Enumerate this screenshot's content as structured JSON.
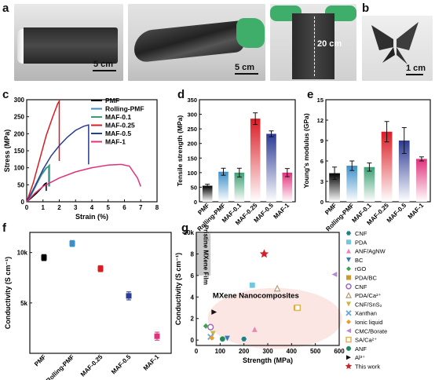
{
  "panel_labels": [
    "a",
    "b",
    "c",
    "d",
    "e",
    "f",
    "g"
  ],
  "photos": {
    "scale_1": "5 cm",
    "scale_2": "5 cm",
    "dimension": "20 cm",
    "scale_b": "1 cm"
  },
  "colors": {
    "PMF": "#000000",
    "Rolling-PMF": "#3c8fc9",
    "MAF-0.1": "#3a9e72",
    "MAF-0.25": "#d91c24",
    "MAF-0.5": "#2c3b94",
    "MAF-1": "#e0317c"
  },
  "chart_data": [
    {
      "panel": "c",
      "type": "line",
      "xlabel": "Strain (%)",
      "ylabel": "Stress (MPa)",
      "xlim": [
        0,
        8
      ],
      "ylim": [
        0,
        300
      ],
      "xticks": [
        0,
        1,
        2,
        3,
        4,
        5,
        6,
        7,
        8
      ],
      "yticks": [
        0,
        50,
        100,
        150,
        200,
        250,
        300
      ],
      "legend_position": "top-right",
      "series": [
        {
          "name": "PMF",
          "x": [
            0,
            0.3,
            0.6,
            0.9,
            1.1,
            1.2,
            1.2
          ],
          "y": [
            0,
            12,
            25,
            40,
            52,
            55,
            32
          ]
        },
        {
          "name": "Rolling-PMF",
          "x": [
            0,
            0.3,
            0.6,
            0.9,
            1.2,
            1.35,
            1.35
          ],
          "y": [
            0,
            25,
            55,
            82,
            100,
            103,
            45
          ]
        },
        {
          "name": "MAF-0.1",
          "x": [
            0,
            0.3,
            0.6,
            0.9,
            1.2,
            1.4,
            1.4
          ],
          "y": [
            0,
            22,
            50,
            78,
            98,
            108,
            45
          ]
        },
        {
          "name": "MAF-0.25",
          "x": [
            0,
            0.4,
            0.8,
            1.2,
            1.6,
            1.9,
            2.0,
            2.0
          ],
          "y": [
            0,
            55,
            125,
            195,
            250,
            288,
            296,
            120
          ]
        },
        {
          "name": "MAF-0.5",
          "x": [
            0,
            0.5,
            1.0,
            1.5,
            2.0,
            2.5,
            3.0,
            3.5,
            3.8,
            3.8
          ],
          "y": [
            0,
            45,
            95,
            135,
            165,
            190,
            210,
            222,
            226,
            110
          ]
        },
        {
          "name": "MAF-1",
          "x": [
            0,
            0.5,
            1.0,
            2.0,
            3.0,
            4.0,
            5.0,
            5.8,
            6.3,
            6.8,
            7.0
          ],
          "y": [
            0,
            25,
            45,
            70,
            88,
            100,
            108,
            110,
            105,
            70,
            45
          ]
        }
      ]
    },
    {
      "panel": "d",
      "type": "bar",
      "ylabel": "Tensile strength (MPa)",
      "ylim": [
        0,
        350
      ],
      "yticks": [
        0,
        50,
        100,
        150,
        200,
        250,
        300,
        350
      ],
      "categories": [
        "PMF",
        "Rolling-PMF",
        "MAF-0.1",
        "MAF-0.25",
        "MAF-0.5",
        "MAF-1"
      ],
      "values": [
        55,
        103,
        100,
        285,
        233,
        100
      ],
      "errors": [
        5,
        12,
        15,
        20,
        10,
        14
      ]
    },
    {
      "panel": "e",
      "type": "bar",
      "ylabel": "Young's modulus (GPa)",
      "ylim": [
        0,
        15
      ],
      "yticks": [
        0,
        3,
        6,
        9,
        12,
        15
      ],
      "categories": [
        "PMF",
        "Rolling-PMF",
        "MAF-0.1",
        "MAF-0.25",
        "MAF-0.5",
        "MAF-1"
      ],
      "values": [
        4.2,
        5.3,
        5.1,
        10.3,
        9.0,
        6.3
      ],
      "errors": [
        0.9,
        0.7,
        0.6,
        1.5,
        1.9,
        0.3
      ]
    },
    {
      "panel": "f",
      "type": "scatter",
      "ylabel": "Conductivity (S cm⁻¹)",
      "ylim": [
        0,
        12000
      ],
      "ytick_labels": [
        "10k",
        "5k"
      ],
      "yticks": [
        10000,
        5000
      ],
      "categories": [
        "PMF",
        "Rolling-PMF",
        "MAF-0.25",
        "MAF-0.5",
        "MAF-1"
      ],
      "values": [
        9500,
        10900,
        8400,
        5700,
        1700
      ],
      "errors": [
        300,
        300,
        300,
        400,
        400
      ]
    },
    {
      "panel": "g",
      "type": "scatter",
      "xlabel": "Strength (MPa)",
      "ylabel": "Conductivity (S cm⁻¹)",
      "xlim": [
        0,
        600
      ],
      "ylim": [
        -0.5,
        10
      ],
      "xticks": [
        0,
        100,
        200,
        300,
        400,
        500,
        600
      ],
      "yticks": [
        0,
        2,
        4,
        6,
        8,
        10
      ],
      "ytick_labels": [
        "0",
        "2",
        "4",
        "6",
        "8",
        "10k"
      ],
      "region_label": "MXene Nanocomposites",
      "bar_label": "Pristine MXene Film",
      "legend_position": "right",
      "series": [
        {
          "name": "CNF",
          "x": [
            200
          ],
          "y": [
            0.1
          ]
        },
        {
          "name": "PDA",
          "x": [
            235
          ],
          "y": [
            5.1
          ]
        },
        {
          "name": "ANF/AgNW",
          "x": [
            245
          ],
          "y": [
            1.0
          ]
        },
        {
          "name": "BC",
          "x": [
            130
          ],
          "y": [
            0.15
          ]
        },
        {
          "name": "rGO",
          "x": [
            40
          ],
          "y": [
            1.3
          ]
        },
        {
          "name": "PDA/BC",
          "x": [
            420
          ],
          "y": [
            3.0
          ]
        },
        {
          "name": "CNF",
          "x": [
            60
          ],
          "y": [
            1.2
          ]
        },
        {
          "name": "PDA/Ca²⁺",
          "x": [
            340
          ],
          "y": [
            4.8
          ]
        },
        {
          "name": "CNF/SnS₂",
          "x": [
            70
          ],
          "y": [
            0.6
          ]
        },
        {
          "name": "Xanthan",
          "x": [
            60
          ],
          "y": [
            0.3
          ]
        },
        {
          "name": "Ionic liquid",
          "x": [
            65
          ],
          "y": [
            0.2
          ]
        },
        {
          "name": "CMC/Borate",
          "x": [
            580
          ],
          "y": [
            6.1
          ]
        },
        {
          "name": "SA/Ca²⁺",
          "x": [
            425
          ],
          "y": [
            3.0
          ]
        },
        {
          "name": "ANF",
          "x": [
            110
          ],
          "y": [
            0.1
          ]
        },
        {
          "name": "Al³⁺",
          "x": [
            75
          ],
          "y": [
            2.6
          ]
        },
        {
          "name": "This work",
          "x": [
            285
          ],
          "y": [
            8.0
          ]
        }
      ]
    }
  ]
}
